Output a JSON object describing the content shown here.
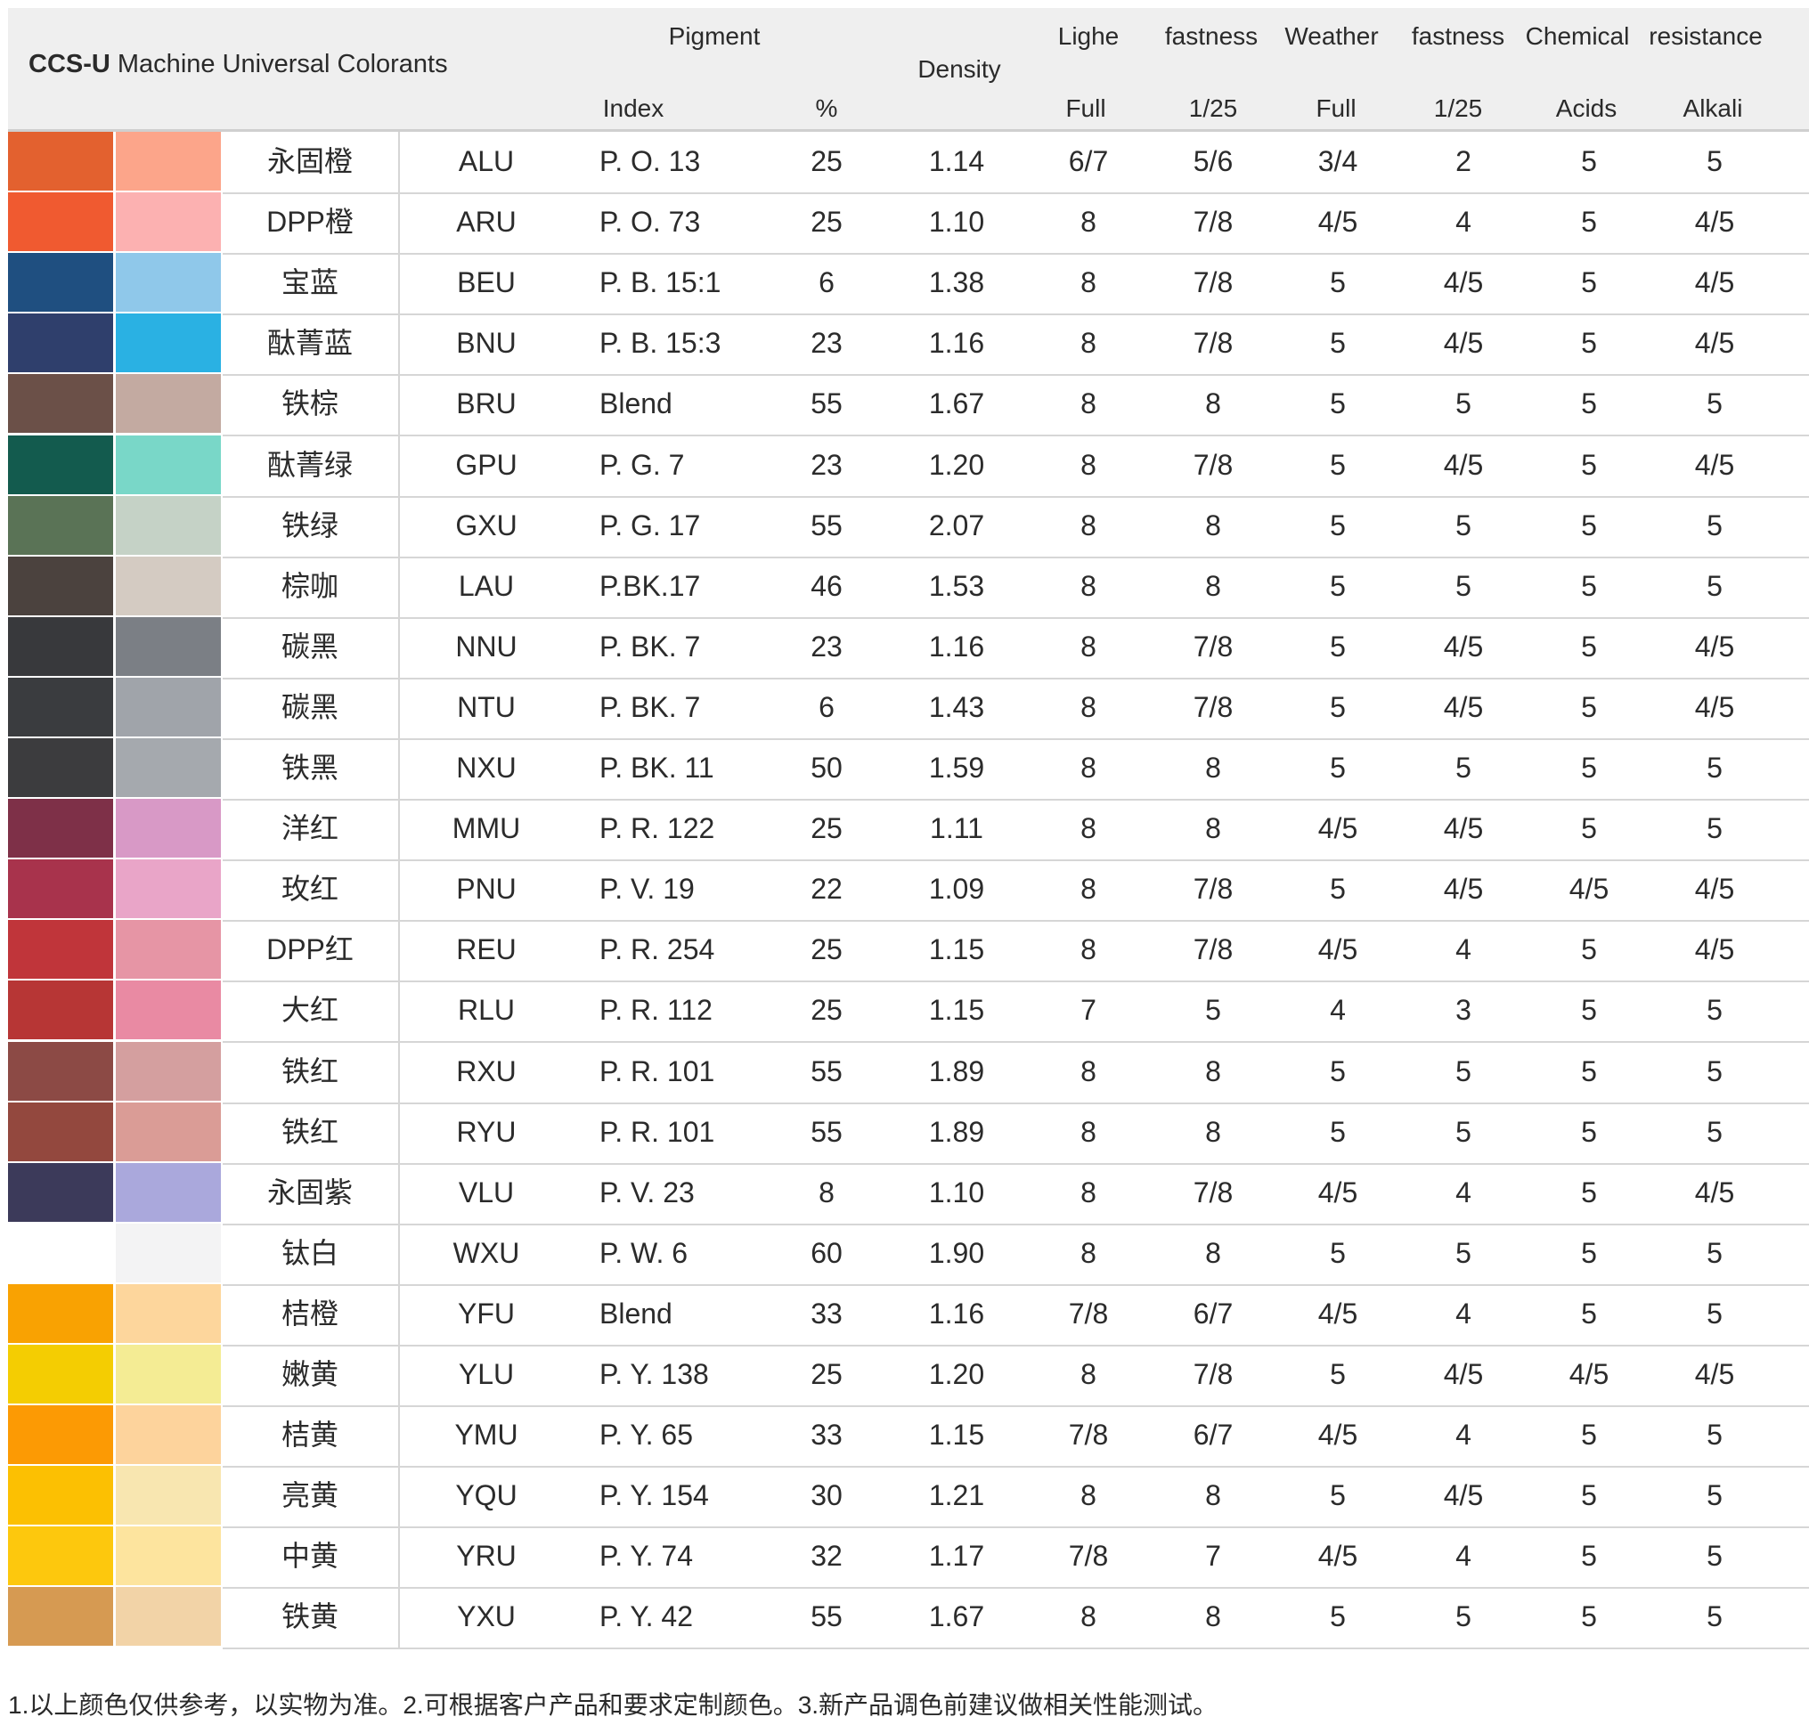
{
  "header": {
    "brand_bold": "CCS-U",
    "brand_rest": " Machine Universal Colorants",
    "pigment": "Pigment",
    "index": "Index",
    "percent": "%",
    "density": "Density",
    "lighe": "Lighe",
    "fastness_1": "fastness",
    "weather": "Weather",
    "fastness_2": "fastness",
    "chemical": "Chemical",
    "resistance": "resistance",
    "full_1": "Full",
    "ratio_1": "1/25",
    "full_2": "Full",
    "ratio_2": "1/25",
    "acids": "Acids",
    "alkali": "Alkali"
  },
  "rows": [
    {
      "name": "永固橙",
      "code": "ALU",
      "index": "P. O. 13",
      "pct": "25",
      "density": "1.14",
      "light_full": "6/7",
      "light_125": "5/6",
      "weather_full": "3/4",
      "weather_125": "2",
      "acids": "5",
      "alkali": "5",
      "color_full": "#e3612f",
      "color_tint": "#fca58a"
    },
    {
      "name": "DPP橙",
      "code": "ARU",
      "index": "P. O. 73",
      "pct": "25",
      "density": "1.10",
      "light_full": "8",
      "light_125": "7/8",
      "weather_full": "4/5",
      "weather_125": "4",
      "acids": "5",
      "alkali": "4/5",
      "color_full": "#f05a30",
      "color_tint": "#fcb1b1"
    },
    {
      "name": "宝蓝",
      "code": "BEU",
      "index": "P. B. 15:1",
      "pct": "6",
      "density": "1.38",
      "light_full": "8",
      "light_125": "7/8",
      "weather_full": "5",
      "weather_125": "4/5",
      "acids": "5",
      "alkali": "4/5",
      "color_full": "#1f4f80",
      "color_tint": "#8fc8ea"
    },
    {
      "name": "酞菁蓝",
      "code": "BNU",
      "index": "P. B. 15:3",
      "pct": "23",
      "density": "1.16",
      "light_full": "8",
      "light_125": "7/8",
      "weather_full": "5",
      "weather_125": "4/5",
      "acids": "5",
      "alkali": "4/5",
      "color_full": "#2f3f6c",
      "color_tint": "#2ab1e3"
    },
    {
      "name": "铁棕",
      "code": "BRU",
      "index": "Blend",
      "pct": "55",
      "density": "1.67",
      "light_full": "8",
      "light_125": "8",
      "weather_full": "5",
      "weather_125": "5",
      "acids": "5",
      "alkali": "5",
      "color_full": "#6b5048",
      "color_tint": "#c3aaa1"
    },
    {
      "name": "酞菁绿",
      "code": "GPU",
      "index": "P. G. 7",
      "pct": "23",
      "density": "1.20",
      "light_full": "8",
      "light_125": "7/8",
      "weather_full": "5",
      "weather_125": "4/5",
      "acids": "5",
      "alkali": "4/5",
      "color_full": "#135b4e",
      "color_tint": "#79d7c8"
    },
    {
      "name": "铁绿",
      "code": "GXU",
      "index": "P. G. 17",
      "pct": "55",
      "density": "2.07",
      "light_full": "8",
      "light_125": "8",
      "weather_full": "5",
      "weather_125": "5",
      "acids": "5",
      "alkali": "5",
      "color_full": "#5a7356",
      "color_tint": "#c5d2c6"
    },
    {
      "name": "棕咖",
      "code": "LAU",
      "index": "P.BK.17",
      "pct": "46",
      "density": "1.53",
      "light_full": "8",
      "light_125": "8",
      "weather_full": "5",
      "weather_125": "5",
      "acids": "5",
      "alkali": "5",
      "color_full": "#4b423e",
      "color_tint": "#d4cbc2"
    },
    {
      "name": "碳黑",
      "code": "NNU",
      "index": "P. BK. 7",
      "pct": "23",
      "density": "1.16",
      "light_full": "8",
      "light_125": "7/8",
      "weather_full": "5",
      "weather_125": "4/5",
      "acids": "5",
      "alkali": "4/5",
      "color_full": "#38393c",
      "color_tint": "#7b7f85"
    },
    {
      "name": "碳黑",
      "code": "NTU",
      "index": "P. BK. 7",
      "pct": "6",
      "density": "1.43",
      "light_full": "8",
      "light_125": "7/8",
      "weather_full": "5",
      "weather_125": "4/5",
      "acids": "5",
      "alkali": "4/5",
      "color_full": "#3a3c3f",
      "color_tint": "#a0a4aa"
    },
    {
      "name": "铁黑",
      "code": "NXU",
      "index": "P. BK. 11",
      "pct": "50",
      "density": "1.59",
      "light_full": "8",
      "light_125": "8",
      "weather_full": "5",
      "weather_125": "5",
      "acids": "5",
      "alkali": "5",
      "color_full": "#3c3c3e",
      "color_tint": "#a5a9ae"
    },
    {
      "name": "洋红",
      "code": "MMU",
      "index": "P. R. 122",
      "pct": "25",
      "density": "1.11",
      "light_full": "8",
      "light_125": "8",
      "weather_full": "4/5",
      "weather_125": "4/5",
      "acids": "5",
      "alkali": "5",
      "color_full": "#7e3048",
      "color_tint": "#d899c6"
    },
    {
      "name": "玫红",
      "code": "PNU",
      "index": "P. V. 19",
      "pct": "22",
      "density": "1.09",
      "light_full": "8",
      "light_125": "7/8",
      "weather_full": "5",
      "weather_125": "4/5",
      "acids": "4/5",
      "alkali": "4/5",
      "color_full": "#a8334c",
      "color_tint": "#e9a5c8"
    },
    {
      "name": "DPP红",
      "code": "REU",
      "index": "P. R. 254",
      "pct": "25",
      "density": "1.15",
      "light_full": "8",
      "light_125": "7/8",
      "weather_full": "4/5",
      "weather_125": "4",
      "acids": "5",
      "alkali": "4/5",
      "color_full": "#c0353a",
      "color_tint": "#e695a5"
    },
    {
      "name": "大红",
      "code": "RLU",
      "index": "P. R. 112",
      "pct": "25",
      "density": "1.15",
      "light_full": "7",
      "light_125": "5",
      "weather_full": "4",
      "weather_125": "3",
      "acids": "5",
      "alkali": "5",
      "color_full": "#b73635",
      "color_tint": "#e98aa3"
    },
    {
      "name": "铁红",
      "code": "RXU",
      "index": "P. R. 101",
      "pct": "55",
      "density": "1.89",
      "light_full": "8",
      "light_125": "8",
      "weather_full": "5",
      "weather_125": "5",
      "acids": "5",
      "alkali": "5",
      "color_full": "#8c4a45",
      "color_tint": "#d49f9f"
    },
    {
      "name": "铁红",
      "code": "RYU",
      "index": "P. R. 101",
      "pct": "55",
      "density": "1.89",
      "light_full": "8",
      "light_125": "8",
      "weather_full": "5",
      "weather_125": "5",
      "acids": "5",
      "alkali": "5",
      "color_full": "#93483e",
      "color_tint": "#da9c96"
    },
    {
      "name": "永固紫",
      "code": "VLU",
      "index": "P. V. 23",
      "pct": "8",
      "density": "1.10",
      "light_full": "8",
      "light_125": "7/8",
      "weather_full": "4/5",
      "weather_125": "4",
      "acids": "5",
      "alkali": "4/5",
      "color_full": "#3c3a5a",
      "color_tint": "#aaa8dc"
    },
    {
      "name": "钛白",
      "code": "WXU",
      "index": "P. W. 6",
      "pct": "60",
      "density": "1.90",
      "light_full": "8",
      "light_125": "8",
      "weather_full": "5",
      "weather_125": "5",
      "acids": "5",
      "alkali": "5",
      "color_full": "#ffffff",
      "color_tint": "#f3f3f4"
    },
    {
      "name": "桔橙",
      "code": "YFU",
      "index": "Blend",
      "pct": "33",
      "density": "1.16",
      "light_full": "7/8",
      "light_125": "6/7",
      "weather_full": "4/5",
      "weather_125": "4",
      "acids": "5",
      "alkali": "5",
      "color_full": "#f9a202",
      "color_tint": "#fdd69c"
    },
    {
      "name": "嫩黄",
      "code": "YLU",
      "index": "P. Y. 138",
      "pct": "25",
      "density": "1.20",
      "light_full": "8",
      "light_125": "7/8",
      "weather_full": "5",
      "weather_125": "4/5",
      "acids": "4/5",
      "alkali": "4/5",
      "color_full": "#f4cd02",
      "color_tint": "#f4ec94"
    },
    {
      "name": "桔黄",
      "code": "YMU",
      "index": "P. Y. 65",
      "pct": "33",
      "density": "1.15",
      "light_full": "7/8",
      "light_125": "6/7",
      "weather_full": "4/5",
      "weather_125": "4",
      "acids": "5",
      "alkali": "5",
      "color_full": "#fc9a04",
      "color_tint": "#fdd39c"
    },
    {
      "name": "亮黄",
      "code": "YQU",
      "index": "P. Y. 154",
      "pct": "30",
      "density": "1.21",
      "light_full": "8",
      "light_125": "8",
      "weather_full": "5",
      "weather_125": "4/5",
      "acids": "5",
      "alkali": "5",
      "color_full": "#fcc002",
      "color_tint": "#f8e6b0"
    },
    {
      "name": "中黄",
      "code": "YRU",
      "index": "P. Y. 74",
      "pct": "32",
      "density": "1.17",
      "light_full": "7/8",
      "light_125": "7",
      "weather_full": "4/5",
      "weather_125": "4",
      "acids": "5",
      "alkali": "5",
      "color_full": "#fdc80d",
      "color_tint": "#fde49e"
    },
    {
      "name": "铁黄",
      "code": "YXU",
      "index": "P. Y. 42",
      "pct": "55",
      "density": "1.67",
      "light_full": "8",
      "light_125": "8",
      "weather_full": "5",
      "weather_125": "5",
      "acids": "5",
      "alkali": "5",
      "color_full": "#d69a52",
      "color_tint": "#f2d3a7"
    }
  ],
  "footnote": "1.以上颜色仅供参考，以实物为准。2.可根据客户产品和要求定制颜色。3.新产品调色前建议做相关性能测试。"
}
